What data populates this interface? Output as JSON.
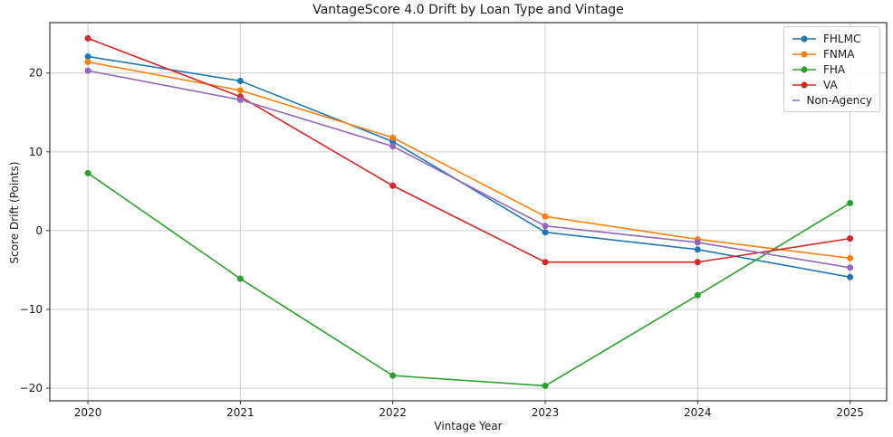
{
  "chart_data": {
    "type": "line",
    "title": "VantageScore 4.0 Drift by Loan Type and Vintage",
    "xlabel": "Vintage Year",
    "ylabel": "Score Drift (Points)",
    "x": [
      2020,
      2021,
      2022,
      2023,
      2024,
      2025
    ],
    "xtick_labels": [
      "2020",
      "2021",
      "2022",
      "2023",
      "2024",
      "2025"
    ],
    "ytick_values": [
      -20,
      -10,
      0,
      10,
      20
    ],
    "ytick_labels": [
      "−20",
      "−10",
      "0",
      "10",
      "20"
    ],
    "xlim": [
      2019.75,
      2025.24
    ],
    "ylim": [
      -21.6,
      26.4
    ],
    "grid": true,
    "legend_position": "upper right",
    "series": [
      {
        "name": "FHLMC",
        "color": "#1f77b4",
        "values": [
          22.1,
          19.0,
          11.3,
          -0.2,
          -2.4,
          -5.9
        ]
      },
      {
        "name": "FNMA",
        "color": "#ff7f0e",
        "values": [
          21.4,
          17.8,
          11.8,
          1.8,
          -1.1,
          -3.5
        ]
      },
      {
        "name": "FHA",
        "color": "#2ca02c",
        "values": [
          7.3,
          -6.1,
          -18.4,
          -19.7,
          -8.2,
          3.5
        ]
      },
      {
        "name": "VA",
        "color": "#d62728",
        "values": [
          24.4,
          17.0,
          5.7,
          -4.0,
          -4.0,
          -1.0
        ]
      },
      {
        "name": "Non-Agency",
        "color": "#9467bd",
        "values": [
          20.3,
          16.6,
          10.7,
          0.6,
          -1.5,
          -4.7
        ]
      }
    ],
    "style": {
      "grid_color": "#cccccc",
      "spine_color": "#333333",
      "tick_color": "#333333",
      "background": "#ffffff"
    }
  }
}
